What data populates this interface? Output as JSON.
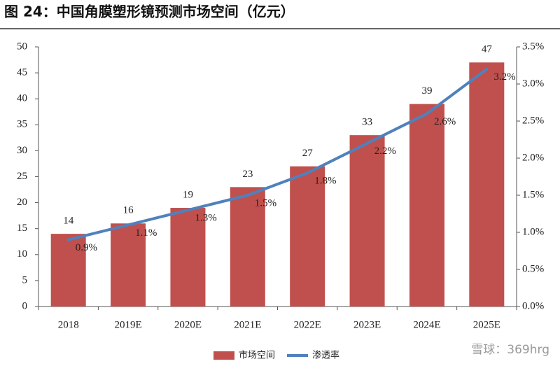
{
  "chart_data": {
    "type": "bar-line",
    "title": "图 24：中国角膜塑形镜预测市场空间（亿元）",
    "categories": [
      "2018",
      "2019E",
      "2020E",
      "2021E",
      "2022E",
      "2023E",
      "2024E",
      "2025E"
    ],
    "series": [
      {
        "name": "市场空间",
        "type": "bar",
        "color": "#c0504d",
        "values": [
          14,
          16,
          19,
          23,
          27,
          33,
          39,
          47
        ]
      },
      {
        "name": "渗透率",
        "type": "line",
        "axis": "y2",
        "color": "#4f81bd",
        "values": [
          0.9,
          1.1,
          1.3,
          1.5,
          1.8,
          2.2,
          2.6,
          3.2
        ],
        "value_labels": [
          "0.9%",
          "1.1%",
          "1.3%",
          "1.5%",
          "1.8%",
          "2.2%",
          "2.6%",
          "3.2%"
        ]
      }
    ],
    "ylim": [
      0,
      50
    ],
    "yticks": [
      0,
      5,
      10,
      15,
      20,
      25,
      30,
      35,
      40,
      45,
      50
    ],
    "y2lim": [
      0,
      3.5
    ],
    "y2ticks": [
      {
        "value": 0,
        "label": "0.0%"
      },
      {
        "value": 0.5,
        "label": "0.5%"
      },
      {
        "value": 1,
        "label": "1.0%"
      },
      {
        "value": 1.5,
        "label": "1.5%"
      },
      {
        "value": 2,
        "label": "2.0%"
      },
      {
        "value": 2.5,
        "label": "2.5%"
      },
      {
        "value": 3,
        "label": "3.0%"
      },
      {
        "value": 3.5,
        "label": "3.5%"
      }
    ],
    "legend": "bottom",
    "watermark": "雪球：369hrg"
  }
}
